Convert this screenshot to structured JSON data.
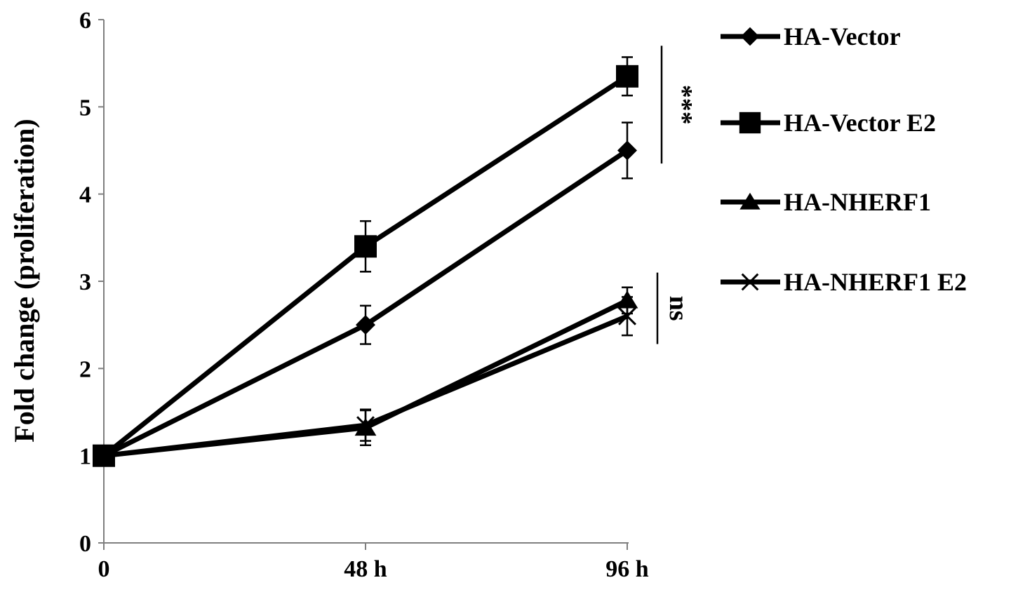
{
  "chart_data": {
    "type": "line",
    "title": "",
    "xlabel": "",
    "ylabel": "Fold change (proliferation)",
    "categories": [
      "0",
      "48 h",
      "96 h"
    ],
    "ylim": [
      0,
      6
    ],
    "yticks": [
      "0",
      "1",
      "2",
      "3",
      "4",
      "5",
      "6"
    ],
    "grid": false,
    "legend_position": "right",
    "series": [
      {
        "name": "HA-Vector",
        "marker": "diamond",
        "values": [
          1.0,
          2.5,
          4.5
        ],
        "errors": [
          0,
          0.22,
          0.32
        ]
      },
      {
        "name": "HA-Vector E2",
        "marker": "square",
        "values": [
          1.0,
          3.4,
          5.35
        ],
        "errors": [
          0,
          0.29,
          0.22
        ]
      },
      {
        "name": "HA-NHERF1",
        "marker": "triangle",
        "values": [
          1.0,
          1.32,
          2.78
        ],
        "errors": [
          0,
          0.2,
          0.15
        ]
      },
      {
        "name": "HA-NHERF1 E2",
        "marker": "cross",
        "values": [
          1.0,
          1.35,
          2.6
        ],
        "errors": [
          0,
          0.18,
          0.22
        ]
      }
    ],
    "annotations": [
      {
        "text": "***",
        "series_group": [
          "HA-Vector",
          "HA-Vector E2"
        ]
      },
      {
        "text": "ns",
        "series_group": [
          "HA-NHERF1",
          "HA-NHERF1 E2"
        ]
      }
    ],
    "colors": {
      "line": "#000000",
      "background": "#ffffff"
    }
  }
}
